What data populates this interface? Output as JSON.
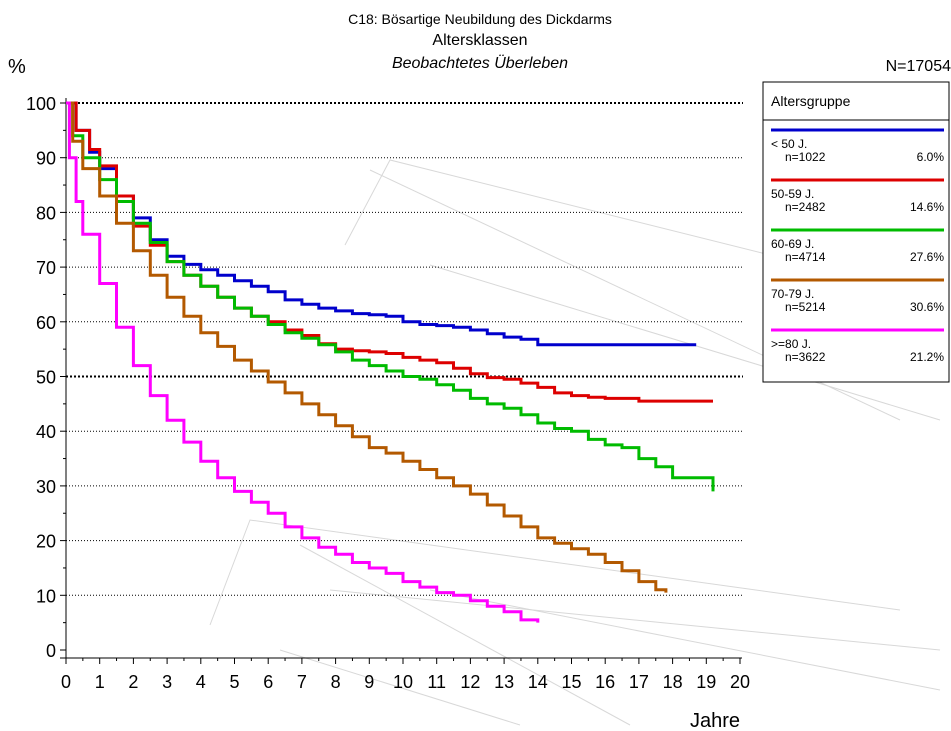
{
  "chart_data": {
    "type": "line",
    "title": "C18: Bösartige Neubildung des Dickdarms",
    "subtitle": "Altersklassen",
    "subtitle2": "Beobachtetes Überleben",
    "ylabel": "%",
    "xlabel": "Jahre",
    "total_label": "N=17054",
    "xlim": [
      0,
      20
    ],
    "ylim": [
      0,
      100
    ],
    "x_ticks": [
      "0",
      "1",
      "2",
      "3",
      "4",
      "5",
      "6",
      "7",
      "8",
      "9",
      "10",
      "11",
      "12",
      "13",
      "14",
      "15",
      "16",
      "17",
      "18",
      "19",
      "20"
    ],
    "y_ticks": [
      "0",
      "10",
      "20",
      "30",
      "40",
      "50",
      "60",
      "70",
      "80",
      "90",
      "100"
    ],
    "grid": "horizontal dotted",
    "legend": {
      "title": "Altersgruppe",
      "placement": "top-right"
    },
    "series": [
      {
        "name": "< 50 J.",
        "n": "n=1022",
        "pct": "6.0%",
        "color": "#0000cc",
        "points": [
          [
            0,
            100
          ],
          [
            0.3,
            95
          ],
          [
            0.7,
            91
          ],
          [
            1,
            88
          ],
          [
            1.5,
            83
          ],
          [
            2,
            79
          ],
          [
            2.5,
            75
          ],
          [
            3,
            72
          ],
          [
            3.5,
            70.5
          ],
          [
            4,
            69.5
          ],
          [
            4.5,
            68.5
          ],
          [
            5,
            67.5
          ],
          [
            5.5,
            66.5
          ],
          [
            6,
            65.5
          ],
          [
            6.5,
            64
          ],
          [
            7,
            63.2
          ],
          [
            7.5,
            62.5
          ],
          [
            8,
            62
          ],
          [
            8.5,
            61.5
          ],
          [
            9,
            61.3
          ],
          [
            9.5,
            61
          ],
          [
            10,
            60
          ],
          [
            10.5,
            59.5
          ],
          [
            11,
            59.3
          ],
          [
            11.5,
            59
          ],
          [
            12,
            58.5
          ],
          [
            12.5,
            57.8
          ],
          [
            13,
            57.2
          ],
          [
            13.5,
            56.8
          ],
          [
            14,
            55.8
          ],
          [
            15,
            55.8
          ],
          [
            16,
            55.8
          ],
          [
            17,
            55.8
          ],
          [
            18,
            55.8
          ],
          [
            18.7,
            55.8
          ]
        ]
      },
      {
        "name": "50-59 J.",
        "n": "n=2482",
        "pct": "14.6%",
        "color": "#dd0000",
        "points": [
          [
            0,
            100
          ],
          [
            0.3,
            95
          ],
          [
            0.7,
            91.5
          ],
          [
            1,
            88.5
          ],
          [
            1.5,
            83
          ],
          [
            2,
            77.5
          ],
          [
            2.5,
            74
          ],
          [
            3,
            71
          ],
          [
            3.5,
            68.5
          ],
          [
            4,
            66.5
          ],
          [
            4.5,
            64.5
          ],
          [
            5,
            62.5
          ],
          [
            5.5,
            61
          ],
          [
            6,
            60
          ],
          [
            6.5,
            58.5
          ],
          [
            7,
            57.5
          ],
          [
            7.5,
            56
          ],
          [
            8,
            55
          ],
          [
            8.5,
            54.7
          ],
          [
            9,
            54.5
          ],
          [
            9.5,
            54.2
          ],
          [
            10,
            53.5
          ],
          [
            10.5,
            53
          ],
          [
            11,
            52.5
          ],
          [
            11.5,
            51.5
          ],
          [
            12,
            50.5
          ],
          [
            12.5,
            49.8
          ],
          [
            13,
            49.5
          ],
          [
            13.5,
            48.8
          ],
          [
            14,
            48
          ],
          [
            14.5,
            47
          ],
          [
            15,
            46.5
          ],
          [
            15.5,
            46.2
          ],
          [
            16,
            46
          ],
          [
            16.5,
            46
          ],
          [
            17,
            45.5
          ],
          [
            18,
            45.5
          ],
          [
            19.2,
            45.5
          ]
        ]
      },
      {
        "name": "60-69 J.",
        "n": "n=4714",
        "pct": "27.6%",
        "color": "#00bb00",
        "points": [
          [
            0,
            100
          ],
          [
            0.2,
            94
          ],
          [
            0.5,
            90
          ],
          [
            1,
            86
          ],
          [
            1.5,
            82
          ],
          [
            2,
            78
          ],
          [
            2.5,
            74.5
          ],
          [
            3,
            71
          ],
          [
            3.5,
            68.5
          ],
          [
            4,
            66.5
          ],
          [
            4.5,
            64.5
          ],
          [
            5,
            62.5
          ],
          [
            5.5,
            61
          ],
          [
            6,
            59.5
          ],
          [
            6.5,
            58
          ],
          [
            7,
            57
          ],
          [
            7.5,
            55.8
          ],
          [
            8,
            54.5
          ],
          [
            8.5,
            53
          ],
          [
            9,
            52
          ],
          [
            9.5,
            51
          ],
          [
            10,
            50
          ],
          [
            10.5,
            49.5
          ],
          [
            11,
            48.5
          ],
          [
            11.5,
            47.5
          ],
          [
            12,
            46
          ],
          [
            12.5,
            45
          ],
          [
            13,
            44.2
          ],
          [
            13.5,
            43
          ],
          [
            14,
            41.5
          ],
          [
            14.5,
            40.5
          ],
          [
            15,
            40
          ],
          [
            15.5,
            38.5
          ],
          [
            16,
            37.5
          ],
          [
            16.5,
            37
          ],
          [
            17,
            35
          ],
          [
            17.5,
            33.5
          ],
          [
            18,
            31.5
          ],
          [
            19,
            31.5
          ],
          [
            19.2,
            29
          ]
        ]
      },
      {
        "name": "70-79 J.",
        "n": "n=5214",
        "pct": "30.6%",
        "color": "#b35900",
        "points": [
          [
            0,
            100
          ],
          [
            0.2,
            93
          ],
          [
            0.5,
            88
          ],
          [
            1,
            83
          ],
          [
            1.5,
            78
          ],
          [
            2,
            73
          ],
          [
            2.5,
            68.5
          ],
          [
            3,
            64.5
          ],
          [
            3.5,
            61
          ],
          [
            4,
            58
          ],
          [
            4.5,
            55.5
          ],
          [
            5,
            53
          ],
          [
            5.5,
            51
          ],
          [
            6,
            49
          ],
          [
            6.5,
            47
          ],
          [
            7,
            45
          ],
          [
            7.5,
            43
          ],
          [
            8,
            41
          ],
          [
            8.5,
            39
          ],
          [
            9,
            37
          ],
          [
            9.5,
            36
          ],
          [
            10,
            34.5
          ],
          [
            10.5,
            33
          ],
          [
            11,
            31.5
          ],
          [
            11.5,
            30
          ],
          [
            12,
            28.5
          ],
          [
            12.5,
            26.5
          ],
          [
            13,
            24.5
          ],
          [
            13.5,
            22.5
          ],
          [
            14,
            20.5
          ],
          [
            14.5,
            19.5
          ],
          [
            15,
            18.5
          ],
          [
            15.5,
            17.5
          ],
          [
            16,
            16
          ],
          [
            16.5,
            14.5
          ],
          [
            17,
            12.5
          ],
          [
            17.5,
            11
          ],
          [
            17.8,
            10.5
          ]
        ]
      },
      {
        "name": ">=80 J.",
        "n": "n=3622",
        "pct": "21.2%",
        "color": "#ff00ff",
        "points": [
          [
            0,
            100
          ],
          [
            0.1,
            90
          ],
          [
            0.3,
            82
          ],
          [
            0.5,
            76
          ],
          [
            1,
            67
          ],
          [
            1.5,
            59
          ],
          [
            2,
            52
          ],
          [
            2.5,
            46.5
          ],
          [
            3,
            42
          ],
          [
            3.5,
            38
          ],
          [
            4,
            34.5
          ],
          [
            4.5,
            31.5
          ],
          [
            5,
            29
          ],
          [
            5.5,
            27
          ],
          [
            6,
            25
          ],
          [
            6.5,
            22.5
          ],
          [
            7,
            20.5
          ],
          [
            7.5,
            18.8
          ],
          [
            8,
            17.5
          ],
          [
            8.5,
            16
          ],
          [
            9,
            15
          ],
          [
            9.5,
            14
          ],
          [
            10,
            12.5
          ],
          [
            10.5,
            11.5
          ],
          [
            11,
            10.5
          ],
          [
            11.5,
            10
          ],
          [
            12,
            9
          ],
          [
            12.5,
            8
          ],
          [
            13,
            7
          ],
          [
            13.5,
            5.5
          ],
          [
            14,
            5
          ]
        ]
      }
    ]
  }
}
